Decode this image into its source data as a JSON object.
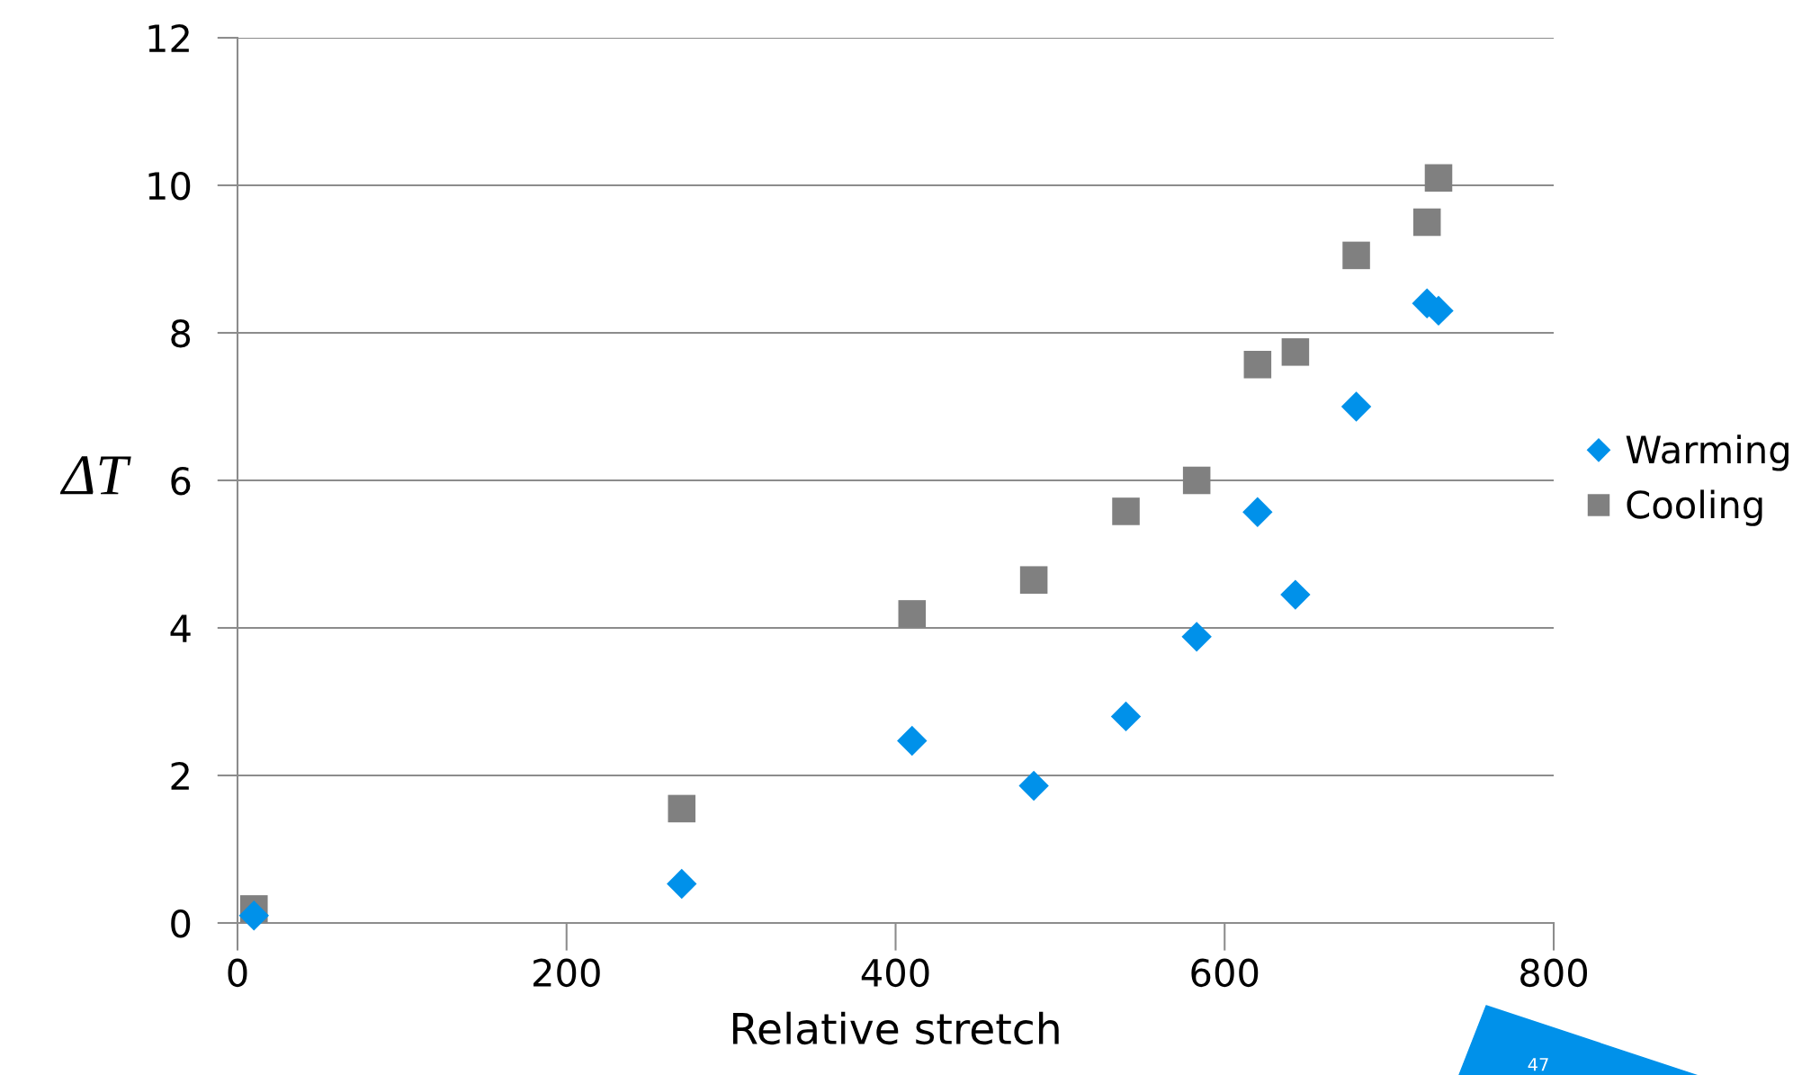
{
  "chart_data": {
    "type": "scatter",
    "xlabel": "Relative stretch",
    "ylabel": "ΔT",
    "xlim": [
      0,
      800
    ],
    "xticks": [
      0,
      200,
      400,
      600,
      800
    ],
    "ylim": [
      0,
      12
    ],
    "yticks": [
      0,
      2,
      4,
      6,
      8,
      10,
      12
    ],
    "grid": "y",
    "legend": "right",
    "series": [
      {
        "name": "Warming",
        "color": "#0091ea",
        "marker": "diamond",
        "x": [
          10,
          270,
          410,
          484,
          540,
          583,
          620,
          643,
          680,
          723,
          730
        ],
        "values": [
          0.1,
          0.53,
          2.47,
          1.86,
          2.8,
          3.88,
          5.57,
          4.45,
          7.0,
          8.4,
          8.3
        ]
      },
      {
        "name": "Cooling",
        "color": "#808080",
        "marker": "square",
        "x": [
          10,
          270,
          410,
          484,
          540,
          583,
          620,
          643,
          680,
          723,
          730
        ],
        "values": [
          0.19,
          1.55,
          4.19,
          4.65,
          5.58,
          6.0,
          7.57,
          7.74,
          9.05,
          9.5,
          10.1
        ]
      }
    ],
    "annotations": [
      "47"
    ]
  }
}
